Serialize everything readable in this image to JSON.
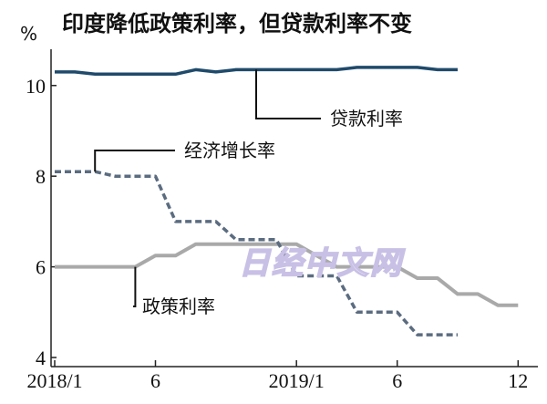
{
  "chart_data": {
    "type": "line",
    "title": "印度降低政策利率，但贷款利率不变",
    "unit": "%",
    "x_tick_labels": [
      "2018/1",
      "6",
      "2019/1",
      "6",
      "12"
    ],
    "x_range": [
      "2018/1",
      "2019/12"
    ],
    "ylim": [
      4,
      10.8
    ],
    "y_ticks": [
      4,
      6,
      8,
      10
    ],
    "grid": false,
    "legend": "none",
    "watermark": "日经中文网",
    "colors": {
      "lending_rate": "#1f4a6b",
      "gdp_growth": "#5b6c80",
      "policy_rate": "#a9a9a9"
    },
    "series": [
      {
        "key": "lending_rate",
        "name": "贷款利率",
        "style": "solid",
        "points": [
          [
            "2018/1",
            10.3
          ],
          [
            "2018/2",
            10.3
          ],
          [
            "2018/3",
            10.25
          ],
          [
            "2018/4",
            10.25
          ],
          [
            "2018/5",
            10.25
          ],
          [
            "2018/6",
            10.25
          ],
          [
            "2018/7",
            10.25
          ],
          [
            "2018/8",
            10.35
          ],
          [
            "2018/9",
            10.3
          ],
          [
            "2018/10",
            10.35
          ],
          [
            "2018/11",
            10.35
          ],
          [
            "2018/12",
            10.35
          ],
          [
            "2019/1",
            10.35
          ],
          [
            "2019/2",
            10.35
          ],
          [
            "2019/3",
            10.35
          ],
          [
            "2019/4",
            10.4
          ],
          [
            "2019/5",
            10.4
          ],
          [
            "2019/6",
            10.4
          ],
          [
            "2019/7",
            10.4
          ],
          [
            "2019/8",
            10.35
          ],
          [
            "2019/9",
            10.35
          ]
        ]
      },
      {
        "key": "gdp_growth",
        "name": "经济增长率",
        "style": "dashed",
        "points": [
          [
            "2018/1",
            8.1
          ],
          [
            "2018/3",
            8.1
          ],
          [
            "2018/4",
            8.0
          ],
          [
            "2018/6",
            8.0
          ],
          [
            "2018/7",
            7.0
          ],
          [
            "2018/9",
            7.0
          ],
          [
            "2018/10",
            6.6
          ],
          [
            "2018/12",
            6.6
          ],
          [
            "2019/1",
            5.8
          ],
          [
            "2019/3",
            5.8
          ],
          [
            "2019/4",
            5.0
          ],
          [
            "2019/6",
            5.0
          ],
          [
            "2019/7",
            4.5
          ],
          [
            "2019/9",
            4.5
          ]
        ]
      },
      {
        "key": "policy_rate",
        "name": "政策利率",
        "style": "solid",
        "points": [
          [
            "2018/1",
            6.0
          ],
          [
            "2018/5",
            6.0
          ],
          [
            "2018/6",
            6.25
          ],
          [
            "2018/7",
            6.25
          ],
          [
            "2018/8",
            6.5
          ],
          [
            "2018/12",
            6.5
          ],
          [
            "2019/1",
            6.5
          ],
          [
            "2019/2",
            6.25
          ],
          [
            "2019/3",
            6.0
          ],
          [
            "2019/6",
            6.0
          ],
          [
            "2019/7",
            5.75
          ],
          [
            "2019/8",
            5.75
          ],
          [
            "2019/9",
            5.4
          ],
          [
            "2019/10",
            5.4
          ],
          [
            "2019/11",
            5.15
          ],
          [
            "2019/12",
            5.15
          ]
        ]
      }
    ],
    "annotations": [
      {
        "series": "lending_rate",
        "text": "贷款利率",
        "anchor": "2018/11"
      },
      {
        "series": "gdp_growth",
        "text": "经济增长率",
        "anchor": "2018/3"
      },
      {
        "series": "policy_rate",
        "text": "政策利率",
        "anchor": "2018/5"
      }
    ]
  }
}
